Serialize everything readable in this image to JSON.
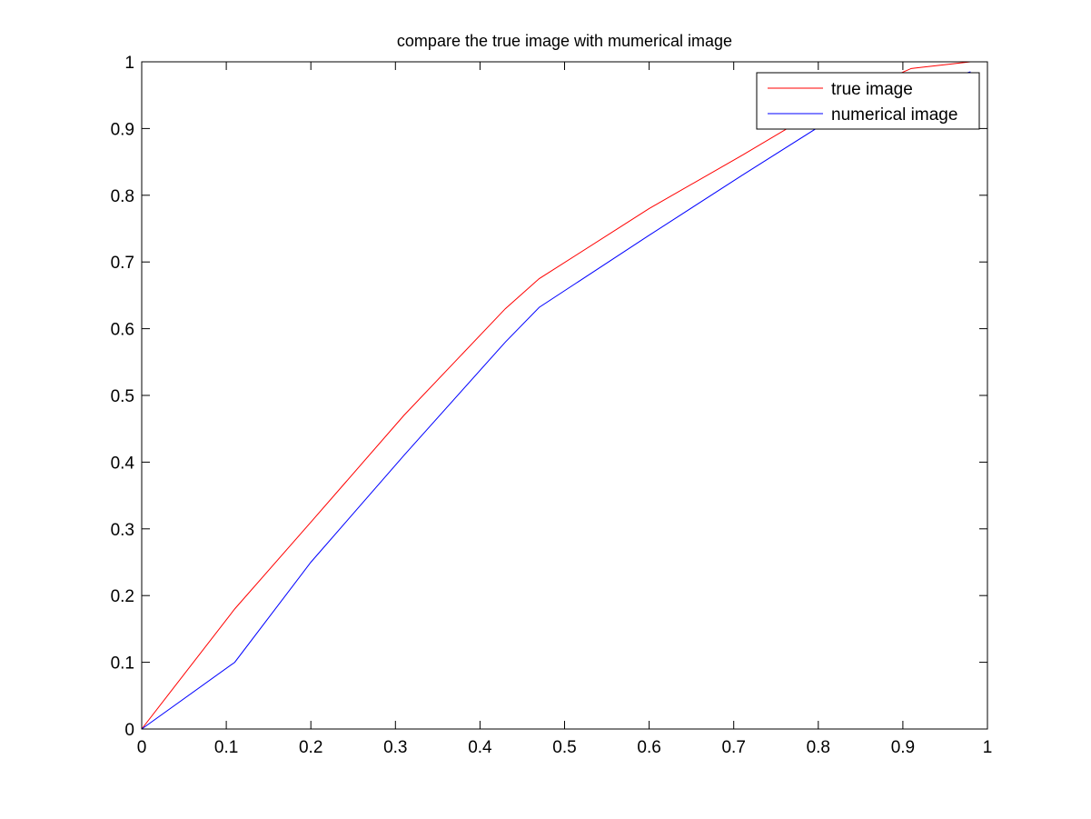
{
  "chart_data": {
    "type": "line",
    "title": "compare the true image with mumerical image",
    "xlim": [
      0,
      1
    ],
    "ylim": [
      0,
      1
    ],
    "xticks": [
      0,
      0.1,
      0.2,
      0.3,
      0.4,
      0.5,
      0.6,
      0.7,
      0.8,
      0.9,
      1
    ],
    "yticks": [
      0,
      0.1,
      0.2,
      0.3,
      0.4,
      0.5,
      0.6,
      0.7,
      0.8,
      0.9,
      1
    ],
    "xtick_labels": [
      "0",
      "0.1",
      "0.2",
      "0.3",
      "0.4",
      "0.5",
      "0.6",
      "0.7",
      "0.8",
      "0.9",
      "1"
    ],
    "ytick_labels": [
      "0",
      "0.1",
      "0.2",
      "0.3",
      "0.4",
      "0.5",
      "0.6",
      "0.7",
      "0.8",
      "0.9",
      "1"
    ],
    "grid": false,
    "legend_position": "top-right",
    "series": [
      {
        "name": "true image",
        "color": "#ff0000",
        "x": [
          0,
          0.11,
          0.2,
          0.31,
          0.43,
          0.47,
          0.6,
          0.71,
          0.81,
          0.91,
          0.98
        ],
        "y": [
          0,
          0.18,
          0.31,
          0.47,
          0.63,
          0.675,
          0.78,
          0.86,
          0.935,
          0.99,
          1.0
        ]
      },
      {
        "name": "numerical image",
        "color": "#0000ff",
        "x": [
          0,
          0.11,
          0.2,
          0.31,
          0.43,
          0.47,
          0.6,
          0.71,
          0.81,
          0.91,
          0.98
        ],
        "y": [
          0,
          0.1,
          0.25,
          0.41,
          0.58,
          0.632,
          0.74,
          0.83,
          0.91,
          0.96,
          0.985
        ]
      }
    ]
  }
}
